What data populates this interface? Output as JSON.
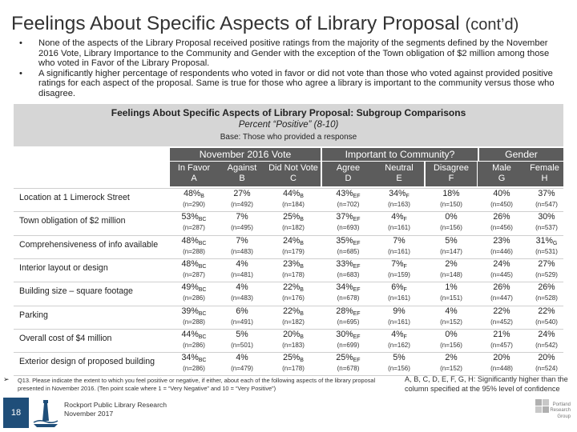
{
  "title": {
    "main": "Feelings About Specific Aspects of Library Proposal",
    "suffix": "(cont’d)"
  },
  "bullets": [
    "None of the aspects of the Library Proposal received positive ratings from the majority of the segments defined by the November 2016 Vote, Library Importance to the Community and Gender with the exception of the Town obligation of $2 million among those who voted in Favor of the Library Proposal.",
    "A significantly higher percentage of respondents who voted in favor or did not vote than those who voted against provided positive ratings for each aspect of the proposal.  Same is true for those who agree a library is important to the community versus those who disagree."
  ],
  "bullet_glyph": "•",
  "table": {
    "title": "Feelings About Specific Aspects of Library Proposal: Subgroup Comparisons",
    "subtitle": "Percent “Positive” (8-10)",
    "base": "Base: Those who provided a response",
    "groups": [
      "November 2016 Vote",
      "Important to Community?",
      "Gender"
    ],
    "columns": [
      {
        "name": "In Favor",
        "code": "A"
      },
      {
        "name": "Against",
        "code": "B"
      },
      {
        "name": "Did Not Vote",
        "code": "C"
      },
      {
        "name": "Agree",
        "code": "D"
      },
      {
        "name": "Neutral",
        "code": "E"
      },
      {
        "name": "Disagree",
        "code": "F"
      },
      {
        "name": "Male",
        "code": "G"
      },
      {
        "name": "Female",
        "code": "H"
      }
    ],
    "rows": [
      {
        "label": "Location at 1 Limerock Street",
        "values": [
          [
            "48%",
            "B"
          ],
          [
            "27%",
            ""
          ],
          [
            "44%",
            "B"
          ],
          [
            "43%",
            "EF"
          ],
          [
            "34%",
            "F"
          ],
          [
            "18%",
            ""
          ],
          [
            "40%",
            ""
          ],
          [
            "37%",
            ""
          ]
        ],
        "n": [
          "(n=290)",
          "(n=492)",
          "(n=184)",
          "(n=702)",
          "(n=163)",
          "(n=150)",
          "(n=450)",
          "(n=547)"
        ]
      },
      {
        "label": "Town obligation of $2 million",
        "values": [
          [
            "53%",
            "BC"
          ],
          [
            "7%",
            ""
          ],
          [
            "25%",
            "B"
          ],
          [
            "37%",
            "EF"
          ],
          [
            "4%",
            "F"
          ],
          [
            "0%",
            ""
          ],
          [
            "26%",
            ""
          ],
          [
            "30%",
            ""
          ]
        ],
        "n": [
          "(n=287)",
          "(n=495)",
          "(n=182)",
          "(n=693)",
          "(n=161)",
          "(n=156)",
          "(n=456)",
          "(n=537)"
        ]
      },
      {
        "label": "Comprehensiveness of info available",
        "values": [
          [
            "48%",
            "BC"
          ],
          [
            "7%",
            ""
          ],
          [
            "24%",
            "B"
          ],
          [
            "35%",
            "EF"
          ],
          [
            "7%",
            ""
          ],
          [
            "5%",
            ""
          ],
          [
            "23%",
            ""
          ],
          [
            "31%",
            "G"
          ]
        ],
        "n": [
          "(n=288)",
          "(n=483)",
          "(n=179)",
          "(n=685)",
          "(n=161)",
          "(n=147)",
          "(n=446)",
          "(n=531)"
        ]
      },
      {
        "label": "Interior layout or design",
        "values": [
          [
            "48%",
            "BC"
          ],
          [
            "4%",
            ""
          ],
          [
            "23%",
            "B"
          ],
          [
            "33%",
            "EF"
          ],
          [
            "7%",
            "F"
          ],
          [
            "2%",
            ""
          ],
          [
            "24%",
            ""
          ],
          [
            "27%",
            ""
          ]
        ],
        "n": [
          "(n=287)",
          "(n=481)",
          "(n=178)",
          "(n=683)",
          "(n=159)",
          "(n=148)",
          "(n=445)",
          "(n=529)"
        ]
      },
      {
        "label": "Building size – square footage",
        "values": [
          [
            "49%",
            "BC"
          ],
          [
            "4%",
            ""
          ],
          [
            "22%",
            "B"
          ],
          [
            "34%",
            "EF"
          ],
          [
            "6%",
            "F"
          ],
          [
            "1%",
            ""
          ],
          [
            "26%",
            ""
          ],
          [
            "26%",
            ""
          ]
        ],
        "n": [
          "(n=286)",
          "(n=483)",
          "(n=176)",
          "(n=678)",
          "(n=161)",
          "(n=151)",
          "(n=447)",
          "(n=528)"
        ]
      },
      {
        "label": "Parking",
        "values": [
          [
            "39%",
            "BC"
          ],
          [
            "6%",
            ""
          ],
          [
            "22%",
            "B"
          ],
          [
            "28%",
            "EF"
          ],
          [
            "9%",
            ""
          ],
          [
            "4%",
            ""
          ],
          [
            "22%",
            ""
          ],
          [
            "22%",
            ""
          ]
        ],
        "n": [
          "(n=288)",
          "(n=491)",
          "(n=182)",
          "(n=695)",
          "(n=161)",
          "(n=152)",
          "(n=452)",
          "(n=540)"
        ]
      },
      {
        "label": "Overall cost of $4 million",
        "values": [
          [
            "44%",
            "BC"
          ],
          [
            "5%",
            ""
          ],
          [
            "20%",
            "B"
          ],
          [
            "30%",
            "EF"
          ],
          [
            "4%",
            "F"
          ],
          [
            "0%",
            ""
          ],
          [
            "21%",
            ""
          ],
          [
            "24%",
            ""
          ]
        ],
        "n": [
          "(n=286)",
          "(n=501)",
          "(n=183)",
          "(n=699)",
          "(n=162)",
          "(n=156)",
          "(n=457)",
          "(n=542)"
        ]
      },
      {
        "label": "Exterior design of proposed building",
        "values": [
          [
            "34%",
            "BC"
          ],
          [
            "4%",
            ""
          ],
          [
            "25%",
            "B"
          ],
          [
            "25%",
            "EF"
          ],
          [
            "5%",
            ""
          ],
          [
            "2%",
            ""
          ],
          [
            "20%",
            ""
          ],
          [
            "20%",
            ""
          ]
        ],
        "n": [
          "(n=286)",
          "(n=479)",
          "(n=178)",
          "(n=678)",
          "(n=156)",
          "(n=152)",
          "(n=448)",
          "(n=524)"
        ]
      }
    ]
  },
  "footnote": {
    "arrow": "➢",
    "question": "Q13. Please indicate the extent to which you feel positive or negative, if either, about each of the following aspects of the library proposal presented in November 2016. (Ten point scale where 1 = “Very Negative” and 10 = “Very Positive”)",
    "significance": "A, B, C, D, E, F, G, H: Significantly higher than the column specified at the 95% level of confidence"
  },
  "footer": {
    "page_number": "18",
    "source_line1": "Rockport Public Library Research",
    "source_line2": "November 2017",
    "logo_text": "Portland Research Group"
  },
  "colors": {
    "header_bg": "#5c5c5c",
    "banner_bg": "#d6d6d6",
    "page_box": "#1f4e79"
  }
}
